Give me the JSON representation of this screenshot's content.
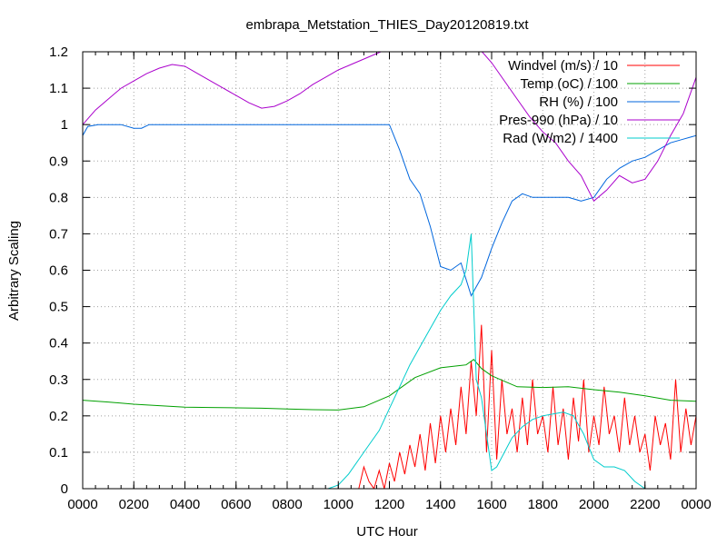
{
  "chart_data": {
    "type": "line",
    "title": "embrapa_Metstation_THIES_Day20120819.txt",
    "xlabel": "UTC Hour",
    "ylabel": "Arbitrary Scaling",
    "xlim": [
      0,
      24
    ],
    "ylim": [
      0,
      1.2
    ],
    "grid": true,
    "legend_position": "top-right",
    "x_ticks": [
      {
        "value": 0,
        "label": "0000"
      },
      {
        "value": 2,
        "label": "0200"
      },
      {
        "value": 4,
        "label": "0400"
      },
      {
        "value": 6,
        "label": "0600"
      },
      {
        "value": 8,
        "label": "0800"
      },
      {
        "value": 10,
        "label": "1000"
      },
      {
        "value": 12,
        "label": "1200"
      },
      {
        "value": 14,
        "label": "1400"
      },
      {
        "value": 16,
        "label": "1600"
      },
      {
        "value": 18,
        "label": "1800"
      },
      {
        "value": 20,
        "label": "2000"
      },
      {
        "value": 22,
        "label": "2200"
      },
      {
        "value": 24,
        "label": "0000"
      }
    ],
    "y_ticks": [
      {
        "value": 0,
        "label": "0"
      },
      {
        "value": 0.1,
        "label": "0.1"
      },
      {
        "value": 0.2,
        "label": "0.2"
      },
      {
        "value": 0.3,
        "label": "0.3"
      },
      {
        "value": 0.4,
        "label": "0.4"
      },
      {
        "value": 0.5,
        "label": "0.5"
      },
      {
        "value": 0.6,
        "label": "0.6"
      },
      {
        "value": 0.7,
        "label": "0.7"
      },
      {
        "value": 0.8,
        "label": "0.8"
      },
      {
        "value": 0.9,
        "label": "0.9"
      },
      {
        "value": 1.0,
        "label": "1"
      },
      {
        "value": 1.1,
        "label": "1.1"
      },
      {
        "value": 1.2,
        "label": "1.2"
      }
    ],
    "series": [
      {
        "name": "Windvel (m/s) / 10",
        "color": "#ff0000",
        "x": [
          9.2,
          9.6,
          10.0,
          10.4,
          10.8,
          11.0,
          11.2,
          11.4,
          11.6,
          11.8,
          12.0,
          12.2,
          12.4,
          12.6,
          12.8,
          13.0,
          13.2,
          13.4,
          13.6,
          13.8,
          14.0,
          14.2,
          14.4,
          14.6,
          14.8,
          15.0,
          15.2,
          15.4,
          15.6,
          15.8,
          16.0,
          16.2,
          16.4,
          16.6,
          16.8,
          17.0,
          17.2,
          17.4,
          17.6,
          17.8,
          18.0,
          18.2,
          18.4,
          18.6,
          18.8,
          19.0,
          19.2,
          19.4,
          19.6,
          19.8,
          20.0,
          20.2,
          20.4,
          20.6,
          20.8,
          21.0,
          21.2,
          21.4,
          21.6,
          21.8,
          22.0,
          22.2,
          22.4,
          22.6,
          22.8,
          23.0,
          23.2,
          23.4,
          23.6,
          23.8,
          24.0
        ],
        "y": [
          0.0,
          0.0,
          0.0,
          0.0,
          0.0,
          0.06,
          0.02,
          0.0,
          0.05,
          0.0,
          0.07,
          0.02,
          0.1,
          0.04,
          0.12,
          0.06,
          0.15,
          0.05,
          0.18,
          0.07,
          0.2,
          0.1,
          0.22,
          0.12,
          0.28,
          0.15,
          0.35,
          0.2,
          0.45,
          0.1,
          0.38,
          0.08,
          0.3,
          0.15,
          0.22,
          0.1,
          0.25,
          0.12,
          0.3,
          0.15,
          0.2,
          0.1,
          0.28,
          0.12,
          0.22,
          0.08,
          0.25,
          0.13,
          0.3,
          0.1,
          0.2,
          0.12,
          0.28,
          0.15,
          0.2,
          0.1,
          0.25,
          0.12,
          0.2,
          0.1,
          0.15,
          0.05,
          0.2,
          0.12,
          0.18,
          0.08,
          0.3,
          0.1,
          0.22,
          0.12,
          0.2
        ]
      },
      {
        "name": "Temp (oC) / 100",
        "color": "#00a000",
        "x": [
          0,
          1,
          2,
          3,
          4,
          5,
          6,
          7,
          8,
          9,
          10,
          11,
          12,
          13,
          14,
          15,
          15.3,
          15.6,
          16,
          17,
          18,
          19,
          20,
          21,
          22,
          23,
          24
        ],
        "y": [
          0.243,
          0.238,
          0.232,
          0.228,
          0.224,
          0.223,
          0.222,
          0.221,
          0.219,
          0.217,
          0.216,
          0.225,
          0.255,
          0.305,
          0.332,
          0.34,
          0.355,
          0.33,
          0.31,
          0.28,
          0.278,
          0.28,
          0.272,
          0.265,
          0.255,
          0.243,
          0.24
        ]
      },
      {
        "name": "RH (%) / 100",
        "color": "#0066dd",
        "x": [
          0,
          0.2,
          0.6,
          1.0,
          1.5,
          2.0,
          2.3,
          2.6,
          3,
          4,
          5,
          6,
          7,
          8,
          9,
          10,
          11,
          12,
          12.4,
          12.8,
          13.2,
          13.6,
          14.0,
          14.4,
          14.8,
          15.2,
          15.6,
          16.0,
          16.4,
          16.8,
          17.2,
          17.6,
          18,
          18.5,
          19,
          19.5,
          20,
          20.5,
          21,
          21.5,
          22,
          22.5,
          23,
          23.5,
          24
        ],
        "y": [
          0.97,
          0.995,
          1.0,
          1.0,
          1.0,
          0.99,
          0.99,
          1.0,
          1.0,
          1.0,
          1.0,
          1.0,
          1.0,
          1.0,
          1.0,
          1.0,
          1.0,
          1.0,
          0.93,
          0.85,
          0.81,
          0.72,
          0.61,
          0.6,
          0.62,
          0.53,
          0.58,
          0.66,
          0.73,
          0.79,
          0.81,
          0.8,
          0.8,
          0.8,
          0.8,
          0.79,
          0.8,
          0.85,
          0.88,
          0.9,
          0.91,
          0.93,
          0.95,
          0.96,
          0.97
        ]
      },
      {
        "name": "Pres-990 (hPa) / 10",
        "color": "#aa00cc",
        "x": [
          0,
          0.5,
          1,
          1.5,
          2,
          2.5,
          3,
          3.5,
          4,
          4.5,
          5,
          5.5,
          6,
          6.5,
          7,
          7.5,
          8,
          8.5,
          9,
          9.5,
          10,
          10.5,
          11,
          11.5,
          12,
          15.5,
          16,
          16.5,
          17,
          17.5,
          18,
          18.5,
          19,
          19.5,
          20,
          20.5,
          21,
          21.5,
          22,
          22.5,
          23,
          23.5,
          24
        ],
        "y": [
          1.0,
          1.04,
          1.07,
          1.1,
          1.12,
          1.14,
          1.155,
          1.165,
          1.16,
          1.14,
          1.12,
          1.1,
          1.08,
          1.06,
          1.045,
          1.05,
          1.065,
          1.085,
          1.11,
          1.13,
          1.15,
          1.165,
          1.18,
          1.195,
          1.21,
          1.21,
          1.17,
          1.12,
          1.07,
          1.02,
          0.98,
          0.95,
          0.9,
          0.86,
          0.79,
          0.82,
          0.86,
          0.84,
          0.85,
          0.9,
          0.97,
          1.03,
          1.13
        ]
      },
      {
        "name": "Rad (W/m2) / 1400",
        "color": "#00cccc",
        "x": [
          0,
          9.0,
          9.6,
          10.0,
          10.4,
          10.8,
          11.2,
          11.6,
          12.0,
          12.4,
          12.8,
          13.2,
          13.6,
          14.0,
          14.4,
          14.8,
          15.0,
          15.2,
          15.4,
          15.6,
          15.8,
          16.0,
          16.2,
          16.5,
          16.8,
          17.2,
          17.6,
          18.0,
          18.4,
          18.8,
          19.2,
          19.6,
          20.0,
          20.4,
          20.8,
          21.2,
          21.6,
          22.0,
          22.4,
          22.8,
          23.2,
          23.6,
          24
        ],
        "y": [
          0.0,
          0.0,
          0.0,
          0.01,
          0.04,
          0.08,
          0.12,
          0.16,
          0.22,
          0.28,
          0.34,
          0.39,
          0.44,
          0.49,
          0.53,
          0.56,
          0.6,
          0.7,
          0.3,
          0.25,
          0.15,
          0.05,
          0.06,
          0.1,
          0.14,
          0.17,
          0.19,
          0.2,
          0.205,
          0.21,
          0.2,
          0.15,
          0.08,
          0.06,
          0.06,
          0.05,
          0.02,
          0.0,
          0.0,
          0.0,
          0.0,
          0.0,
          0.0
        ]
      }
    ]
  }
}
